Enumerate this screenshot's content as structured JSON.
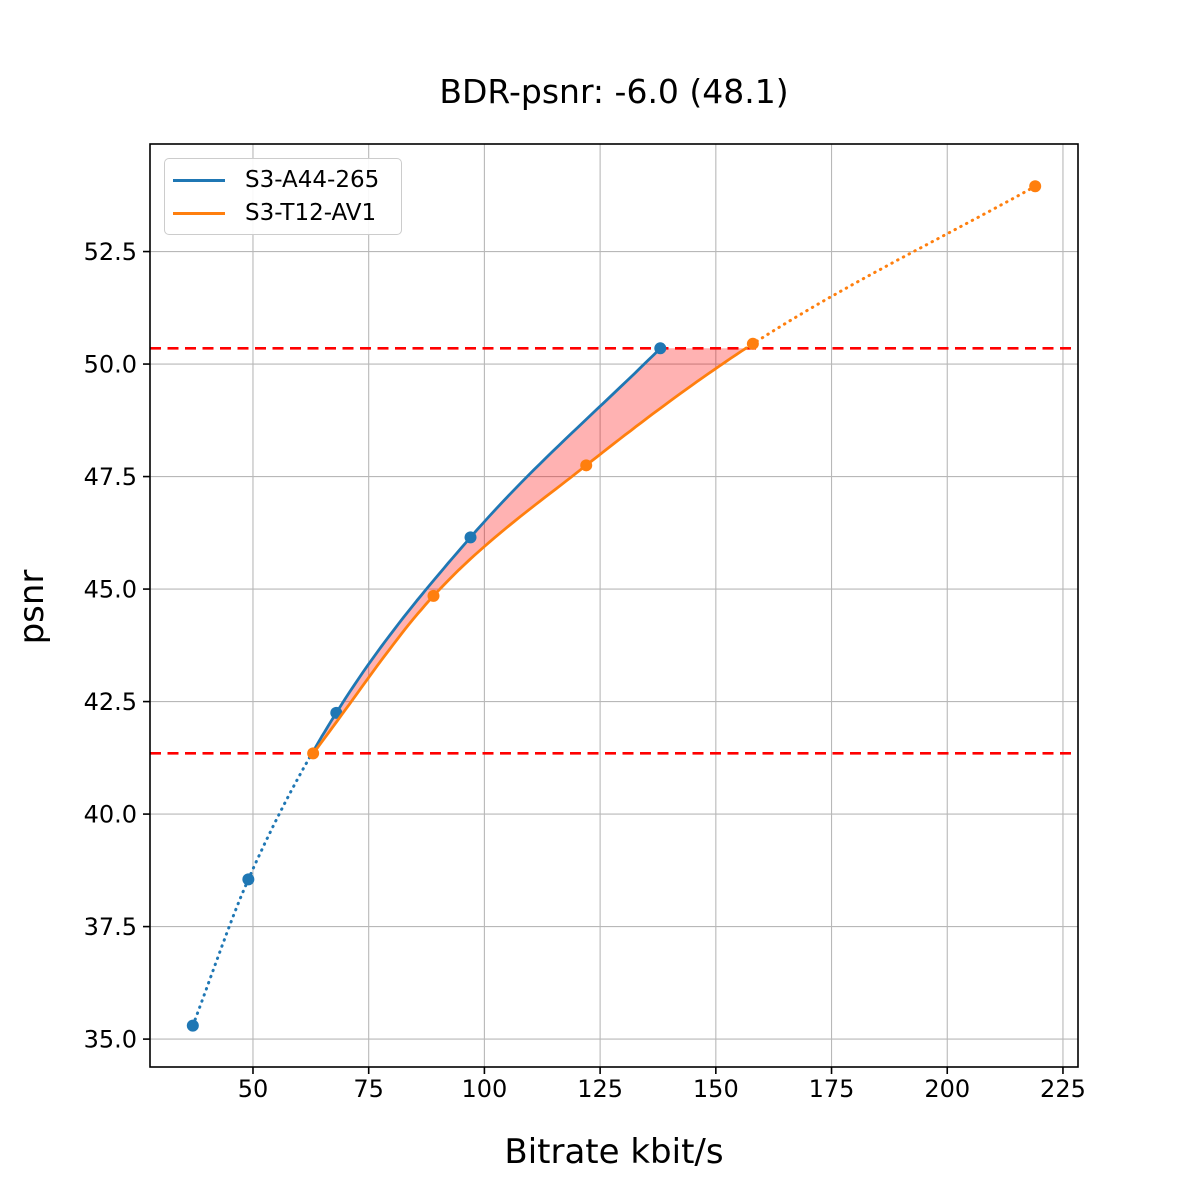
{
  "chart_data": {
    "type": "line",
    "title": "BDR-psnr: -6.0 (48.1)",
    "xlabel": "Bitrate kbit/s",
    "ylabel": "psnr",
    "xlim": [
      27.75,
      228.25
    ],
    "ylim": [
      34.38,
      54.89
    ],
    "xticks": [
      50,
      75,
      100,
      125,
      150,
      175,
      200,
      225
    ],
    "yticks": [
      35.0,
      37.5,
      40.0,
      42.5,
      45.0,
      47.5,
      50.0,
      52.5
    ],
    "grid": true,
    "grid_color": "#b8b8b8",
    "legend_position": "upper-left",
    "series": [
      {
        "name": "S3-A44-265",
        "color": "#1f77b4",
        "points": [
          [
            37,
            35.3
          ],
          [
            49,
            38.55
          ],
          [
            68,
            42.25
          ],
          [
            97,
            46.15
          ],
          [
            138,
            50.35
          ]
        ]
      },
      {
        "name": "S3-T12-AV1",
        "color": "#ff7f0e",
        "points": [
          [
            63,
            41.35
          ],
          [
            89,
            44.85
          ],
          [
            122,
            47.75
          ],
          [
            158,
            50.45
          ],
          [
            219,
            53.95
          ]
        ]
      }
    ],
    "overlap_band": {
      "psnr_low": 41.35,
      "psnr_high": 50.35,
      "line_color": "#ff0000",
      "line_style": "dashed",
      "fill_color": "rgba(255,0,0,0.3)"
    }
  }
}
